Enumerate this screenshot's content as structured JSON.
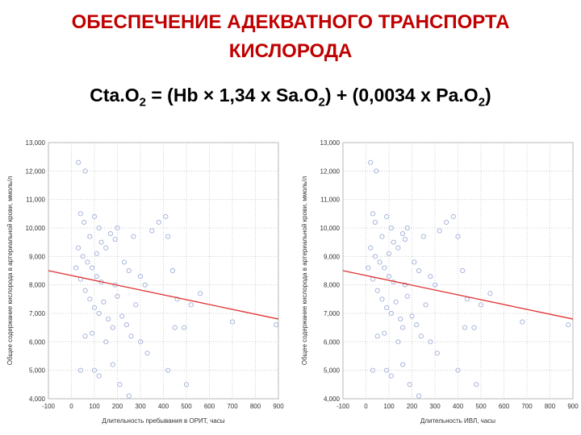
{
  "slide": {
    "title": [
      "ОБЕСПЕЧЕНИЕ АДЕКВАТНОГО ТРАНСПОРТА",
      "КИСЛОРОДА"
    ],
    "formula": [
      {
        "text": "Cta.O"
      },
      {
        "sub": "2"
      },
      {
        "text": " = (Hb × 1,34 x Sa.O"
      },
      {
        "sub": "2"
      },
      {
        "text": ") + (0,0034 x Pa.O"
      },
      {
        "sub": "2"
      },
      {
        "text": ")"
      }
    ]
  },
  "chart_data": [
    {
      "type": "scatter",
      "x_label": "Длительность пребывания в ОРИТ, часы",
      "y_label": "Общее содержание кислорода в артериальной крови, ммоль/л",
      "xlim": [
        -100,
        900
      ],
      "xticks": [
        -100,
        0,
        100,
        200,
        300,
        400,
        500,
        600,
        700,
        800,
        900
      ],
      "ylim": [
        4,
        13
      ],
      "yticks": [
        {
          "value": 4,
          "label": "4,000"
        },
        {
          "value": 5,
          "label": "5,000"
        },
        {
          "value": 6,
          "label": "6,000"
        },
        {
          "value": 7,
          "label": "7,000"
        },
        {
          "value": 8,
          "label": "8,000"
        },
        {
          "value": 9,
          "label": "9,000"
        },
        {
          "value": 10,
          "label": "10,000"
        },
        {
          "value": 11,
          "label": "11,000"
        },
        {
          "value": 12,
          "label": "12,000"
        },
        {
          "value": 13,
          "label": "13,000"
        }
      ],
      "grid": true,
      "color": "#a9b6dc",
      "x": [
        30,
        60,
        40,
        55,
        100,
        120,
        80,
        30,
        50,
        70,
        90,
        110,
        130,
        150,
        170,
        190,
        200,
        230,
        250,
        270,
        300,
        320,
        350,
        380,
        410,
        420,
        440,
        460,
        40,
        60,
        80,
        100,
        120,
        140,
        160,
        180,
        200,
        220,
        240,
        260,
        280,
        300,
        330,
        180,
        100,
        40,
        450,
        490,
        520,
        560,
        700,
        890,
        210,
        250,
        120,
        500,
        60,
        90,
        150,
        420,
        20,
        110,
        130,
        190
      ],
      "y": [
        12.3,
        12.0,
        10.5,
        10.2,
        10.4,
        10.0,
        9.7,
        9.3,
        9.0,
        8.8,
        8.6,
        9.1,
        9.5,
        9.3,
        9.8,
        9.6,
        10.0,
        8.8,
        8.5,
        9.7,
        8.3,
        8.0,
        9.9,
        10.2,
        10.4,
        9.7,
        8.5,
        7.5,
        8.2,
        7.8,
        7.5,
        7.2,
        7.0,
        7.4,
        6.8,
        6.5,
        7.6,
        6.9,
        6.6,
        6.2,
        7.3,
        6.0,
        5.6,
        5.2,
        5.0,
        5.0,
        6.5,
        6.5,
        7.3,
        7.7,
        6.7,
        6.6,
        4.5,
        4.1,
        4.8,
        4.5,
        6.2,
        6.3,
        6.0,
        5.0,
        8.6,
        8.3,
        8.1,
        8.0
      ],
      "trend": {
        "x": [
          -100,
          900
        ],
        "y": [
          8.5,
          6.8
        ],
        "color": "#e03030"
      }
    },
    {
      "type": "scatter",
      "x_label": "Длительность ИВЛ, часы",
      "y_label": "Общее содержание кислорода в артериальной крови, ммоль/л",
      "xlim": [
        -100,
        900
      ],
      "xticks": [
        -100,
        0,
        100,
        200,
        300,
        400,
        500,
        600,
        700,
        800,
        900
      ],
      "ylim": [
        4,
        13
      ],
      "yticks": [
        {
          "value": 4,
          "label": "4,000"
        },
        {
          "value": 5,
          "label": "5,000"
        },
        {
          "value": 6,
          "label": "6,000"
        },
        {
          "value": 7,
          "label": "7,000"
        },
        {
          "value": 8,
          "label": "8,000"
        },
        {
          "value": 9,
          "label": "9,000"
        },
        {
          "value": 10,
          "label": "10,000"
        },
        {
          "value": 11,
          "label": "11,000"
        },
        {
          "value": 12,
          "label": "12,000"
        },
        {
          "value": 13,
          "label": "13,000"
        }
      ],
      "grid": true,
      "color": "#a9b6dc",
      "x": [
        20,
        45,
        30,
        40,
        90,
        110,
        70,
        20,
        40,
        60,
        80,
        100,
        120,
        140,
        160,
        170,
        180,
        210,
        230,
        250,
        280,
        300,
        320,
        350,
        380,
        400,
        420,
        440,
        30,
        50,
        70,
        90,
        110,
        130,
        150,
        160,
        180,
        200,
        220,
        240,
        260,
        280,
        310,
        160,
        90,
        30,
        430,
        470,
        500,
        540,
        680,
        880,
        190,
        230,
        110,
        480,
        50,
        80,
        140,
        400,
        10,
        100,
        120,
        170
      ],
      "y": [
        12.3,
        12.0,
        10.5,
        10.2,
        10.4,
        10.0,
        9.7,
        9.3,
        9.0,
        8.8,
        8.6,
        9.1,
        9.5,
        9.3,
        9.8,
        9.6,
        10.0,
        8.8,
        8.5,
        9.7,
        8.3,
        8.0,
        9.9,
        10.2,
        10.4,
        9.7,
        8.5,
        7.5,
        8.2,
        7.8,
        7.5,
        7.2,
        7.0,
        7.4,
        6.8,
        6.5,
        7.6,
        6.9,
        6.6,
        6.2,
        7.3,
        6.0,
        5.6,
        5.2,
        5.0,
        5.0,
        6.5,
        6.5,
        7.3,
        7.7,
        6.7,
        6.6,
        4.5,
        4.1,
        4.8,
        4.5,
        6.2,
        6.3,
        6.0,
        5.0,
        8.6,
        8.3,
        8.1,
        8.0
      ],
      "trend": {
        "x": [
          -100,
          900
        ],
        "y": [
          8.5,
          6.8
        ],
        "color": "#e03030"
      }
    }
  ]
}
